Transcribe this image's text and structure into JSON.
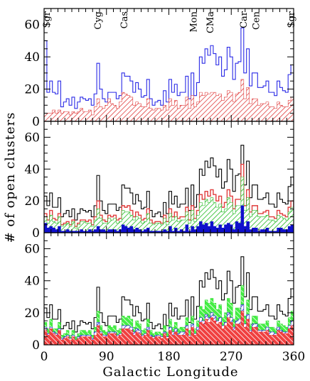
{
  "figure": {
    "xlabel": "Galactic Longitude",
    "ylabel": "# of open clusters"
  },
  "chart_data": [
    {
      "type": "area",
      "panel": "top",
      "xlim": [
        0,
        360
      ],
      "ylim": [
        0,
        70
      ],
      "xticks": [
        0,
        90,
        180,
        270,
        360
      ],
      "yticks": [
        0,
        20,
        40,
        60
      ],
      "bin_width": 4,
      "region_labels": [
        {
          "text": "Sgr",
          "l": 4
        },
        {
          "text": "Cyg",
          "l": 78
        },
        {
          "text": "Cas",
          "l": 116
        },
        {
          "text": "Mon",
          "l": 216
        },
        {
          "text": "CMa",
          "l": 240
        },
        {
          "text": "Car",
          "l": 288
        },
        {
          "text": "Cen",
          "l": 306
        },
        {
          "text": "Sgr",
          "l": 357
        }
      ],
      "series": [
        {
          "style": "outline",
          "color": "#2a2ae6",
          "values": [
            50,
            18,
            25,
            18,
            17,
            25,
            9,
            12,
            14,
            10,
            15,
            8,
            12,
            15,
            14,
            13,
            14,
            10,
            17,
            36,
            20,
            14,
            12,
            18,
            18,
            18,
            14,
            16,
            30,
            28,
            28,
            25,
            18,
            24,
            20,
            15,
            16,
            26,
            14,
            10,
            12,
            13,
            10,
            19,
            12,
            26,
            18,
            23,
            16,
            18,
            18,
            28,
            14,
            30,
            16,
            24,
            40,
            36,
            45,
            41,
            47,
            42,
            35,
            40,
            28,
            32,
            46,
            40,
            26,
            36,
            37,
            58,
            30,
            45,
            22,
            30,
            30,
            21,
            21,
            22,
            25,
            18,
            18,
            16,
            25,
            21,
            19,
            18,
            29,
            35
          ]
        },
        {
          "style": "hatch",
          "color": "#e03c3c",
          "values": [
            5,
            5,
            5,
            7,
            5,
            7,
            5,
            6,
            6,
            4,
            6,
            5,
            6,
            8,
            6,
            6,
            7,
            4,
            9,
            14,
            9,
            8,
            10,
            14,
            11,
            10,
            8,
            12,
            18,
            17,
            16,
            15,
            10,
            12,
            11,
            9,
            9,
            14,
            8,
            7,
            8,
            8,
            7,
            10,
            7,
            14,
            10,
            13,
            8,
            10,
            10,
            15,
            8,
            16,
            9,
            12,
            18,
            16,
            18,
            17,
            18,
            18,
            16,
            17,
            13,
            15,
            19,
            18,
            12,
            17,
            18,
            26,
            14,
            21,
            11,
            14,
            14,
            10,
            11,
            11,
            12,
            9,
            9,
            8,
            12,
            10,
            9,
            9,
            13,
            15
          ]
        }
      ]
    },
    {
      "type": "area",
      "panel": "middle",
      "xlim": [
        0,
        360
      ],
      "ylim": [
        0,
        70
      ],
      "xticks": [
        0,
        90,
        180,
        270,
        360
      ],
      "yticks": [
        0,
        20,
        40,
        60
      ],
      "bin_width": 4,
      "series": [
        {
          "style": "outline",
          "color": "#000000",
          "values": [
            23,
            17,
            25,
            16,
            16,
            22,
            10,
            12,
            14,
            10,
            15,
            8,
            12,
            15,
            14,
            13,
            14,
            10,
            17,
            36,
            20,
            14,
            12,
            18,
            18,
            18,
            14,
            16,
            30,
            28,
            28,
            25,
            18,
            24,
            20,
            15,
            16,
            26,
            14,
            10,
            12,
            13,
            10,
            19,
            12,
            26,
            18,
            23,
            16,
            18,
            18,
            28,
            14,
            30,
            16,
            24,
            40,
            36,
            45,
            41,
            47,
            42,
            35,
            40,
            28,
            32,
            46,
            40,
            26,
            36,
            37,
            55,
            30,
            45,
            22,
            30,
            30,
            21,
            21,
            22,
            25,
            18,
            18,
            16,
            25,
            21,
            19,
            18,
            29,
            35
          ]
        },
        {
          "style": "outline-fill",
          "color": "#e03c3c",
          "values": [
            12,
            8,
            14,
            9,
            8,
            12,
            5,
            6,
            7,
            5,
            8,
            4,
            6,
            8,
            8,
            7,
            8,
            5,
            10,
            20,
            11,
            8,
            7,
            11,
            10,
            11,
            8,
            9,
            17,
            16,
            17,
            14,
            10,
            13,
            11,
            8,
            9,
            15,
            8,
            6,
            7,
            7,
            6,
            11,
            7,
            15,
            10,
            13,
            9,
            10,
            10,
            16,
            8,
            17,
            9,
            14,
            24,
            21,
            26,
            23,
            27,
            24,
            20,
            23,
            16,
            19,
            27,
            23,
            15,
            21,
            21,
            43,
            17,
            27,
            13,
            17,
            17,
            12,
            12,
            13,
            14,
            10,
            10,
            9,
            14,
            12,
            11,
            10,
            16,
            20
          ]
        },
        {
          "style": "hatch",
          "color": "#22bb22",
          "values": [
            10,
            6,
            11,
            7,
            6,
            10,
            4,
            5,
            6,
            4,
            7,
            3,
            5,
            7,
            7,
            6,
            6,
            4,
            8,
            15,
            9,
            6,
            6,
            9,
            8,
            9,
            6,
            7,
            14,
            13,
            13,
            11,
            8,
            10,
            9,
            6,
            7,
            12,
            6,
            5,
            6,
            6,
            5,
            9,
            5,
            12,
            8,
            10,
            7,
            8,
            8,
            13,
            6,
            14,
            7,
            11,
            19,
            17,
            21,
            19,
            22,
            19,
            16,
            18,
            13,
            15,
            22,
            19,
            12,
            17,
            17,
            35,
            14,
            22,
            10,
            14,
            14,
            10,
            10,
            10,
            11,
            8,
            8,
            7,
            11,
            10,
            9,
            8,
            13,
            16
          ]
        },
        {
          "style": "solid",
          "color": "#1010cc",
          "values": [
            6,
            3,
            4,
            3,
            2,
            4,
            1,
            1,
            2,
            1,
            1,
            1,
            1,
            2,
            1,
            1,
            2,
            1,
            2,
            4,
            2,
            2,
            1,
            2,
            2,
            2,
            1,
            2,
            5,
            4,
            3,
            4,
            2,
            3,
            2,
            1,
            2,
            3,
            1,
            1,
            1,
            1,
            1,
            2,
            1,
            4,
            1,
            3,
            1,
            2,
            1,
            5,
            1,
            4,
            2,
            4,
            7,
            5,
            6,
            4,
            7,
            4,
            3,
            5,
            3,
            5,
            6,
            5,
            2,
            7,
            6,
            17,
            4,
            7,
            2,
            3,
            3,
            1,
            2,
            2,
            3,
            1,
            1,
            1,
            3,
            3,
            2,
            2,
            4,
            5
          ]
        }
      ]
    },
    {
      "type": "area",
      "panel": "bottom",
      "xlim": [
        0,
        360
      ],
      "ylim": [
        0,
        70
      ],
      "xticks": [
        0,
        90,
        180,
        270,
        360
      ],
      "yticks": [
        0,
        20,
        40,
        60
      ],
      "bin_width": 4,
      "series": [
        {
          "style": "outline",
          "color": "#000000",
          "values": [
            23,
            17,
            25,
            16,
            16,
            22,
            10,
            12,
            14,
            10,
            15,
            8,
            12,
            15,
            14,
            13,
            14,
            10,
            17,
            36,
            20,
            14,
            12,
            18,
            18,
            18,
            14,
            16,
            30,
            28,
            28,
            25,
            18,
            24,
            20,
            15,
            16,
            26,
            14,
            10,
            12,
            13,
            10,
            19,
            12,
            26,
            18,
            23,
            16,
            18,
            18,
            28,
            14,
            30,
            16,
            24,
            40,
            36,
            45,
            41,
            47,
            42,
            35,
            40,
            28,
            32,
            46,
            40,
            26,
            36,
            37,
            55,
            30,
            45,
            22,
            30,
            30,
            21,
            21,
            22,
            25,
            18,
            18,
            16,
            25,
            21,
            19,
            18,
            29,
            35
          ]
        },
        {
          "style": "fill-hatch",
          "color": "#33dd33",
          "values": [
            14,
            10,
            16,
            10,
            10,
            14,
            6,
            7,
            9,
            6,
            9,
            5,
            7,
            9,
            9,
            8,
            9,
            6,
            11,
            21,
            12,
            9,
            8,
            12,
            11,
            12,
            9,
            10,
            18,
            17,
            18,
            16,
            11,
            15,
            13,
            9,
            10,
            16,
            9,
            7,
            8,
            8,
            7,
            12,
            8,
            16,
            11,
            14,
            10,
            11,
            11,
            17,
            9,
            18,
            10,
            15,
            24,
            22,
            28,
            26,
            29,
            26,
            22,
            25,
            17,
            20,
            29,
            26,
            16,
            23,
            23,
            37,
            18,
            28,
            13,
            18,
            18,
            13,
            13,
            13,
            15,
            11,
            11,
            10,
            15,
            13,
            12,
            11,
            17,
            21
          ]
        },
        {
          "style": "hatch",
          "color": "#1a1acc",
          "values": [
            11,
            7,
            11,
            8,
            7,
            10,
            4,
            5,
            6,
            4,
            6,
            3,
            5,
            6,
            6,
            6,
            6,
            4,
            8,
            14,
            8,
            6,
            6,
            8,
            8,
            8,
            6,
            7,
            12,
            12,
            12,
            11,
            8,
            10,
            9,
            6,
            7,
            11,
            6,
            5,
            6,
            6,
            5,
            8,
            5,
            11,
            8,
            10,
            7,
            8,
            8,
            12,
            6,
            13,
            7,
            11,
            17,
            15,
            19,
            17,
            20,
            18,
            15,
            17,
            12,
            14,
            20,
            17,
            11,
            15,
            16,
            25,
            13,
            19,
            9,
            13,
            13,
            9,
            9,
            9,
            11,
            8,
            8,
            7,
            11,
            9,
            8,
            8,
            12,
            15
          ]
        },
        {
          "style": "fill-hatch",
          "color": "#ee3333",
          "values": [
            9,
            6,
            10,
            7,
            6,
            9,
            3,
            4,
            5,
            3,
            5,
            3,
            4,
            5,
            5,
            5,
            5,
            3,
            6,
            12,
            7,
            5,
            5,
            7,
            7,
            7,
            5,
            6,
            10,
            10,
            10,
            9,
            6,
            8,
            7,
            5,
            6,
            9,
            5,
            4,
            5,
            5,
            4,
            7,
            4,
            9,
            6,
            8,
            6,
            6,
            6,
            10,
            5,
            11,
            6,
            9,
            14,
            13,
            16,
            14,
            17,
            15,
            13,
            14,
            10,
            12,
            17,
            14,
            9,
            13,
            13,
            21,
            11,
            16,
            8,
            11,
            11,
            8,
            8,
            8,
            9,
            6,
            6,
            6,
            9,
            8,
            7,
            7,
            10,
            12
          ]
        }
      ]
    }
  ]
}
